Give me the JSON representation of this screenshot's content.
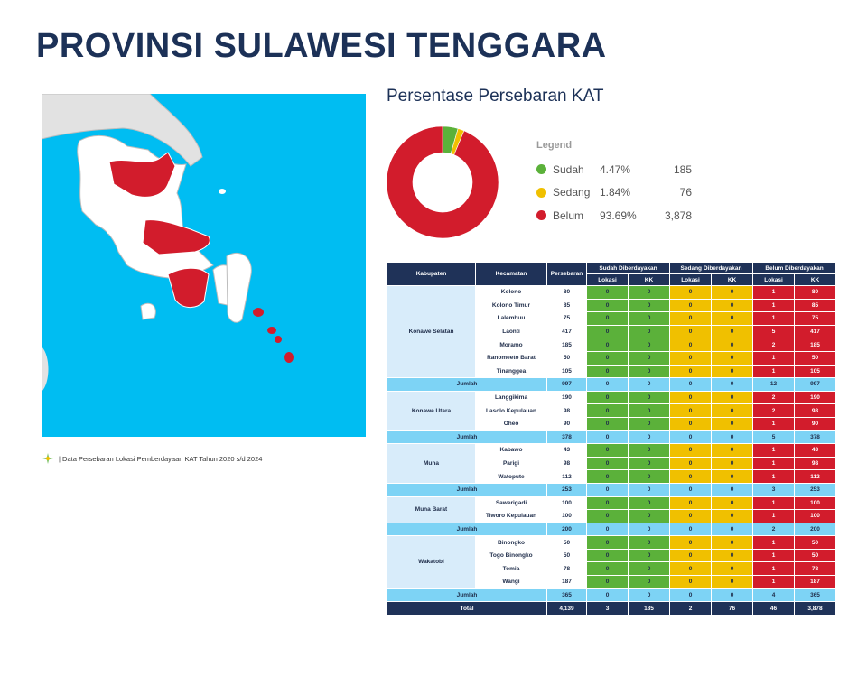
{
  "title": "PROVINSI SULAWESI TENGGARA",
  "chart_title": "Persentase Persebaran KAT",
  "source_note": "| Data Persebaran Lokasi Pemberdayaan KAT Tahun 2020 s/d 2024",
  "colors": {
    "sudah": "#5bb13a",
    "sedang": "#f0c000",
    "belum": "#d21c2c",
    "sea": "#00bdf2",
    "header": "#1f3258"
  },
  "map": {
    "highlighted_regions": [
      "Konawe Selatan",
      "Konawe Utara",
      "Muna",
      "Muna Barat",
      "Wakatobi"
    ]
  },
  "chart_data": {
    "type": "pie",
    "donut": true,
    "title": "Persentase Persebaran KAT",
    "legend_title": "Legend",
    "slices": [
      {
        "name": "Sudah",
        "percent": "4.47%",
        "value": 185,
        "label_value": "185",
        "color": "#5bb13a"
      },
      {
        "name": "Sedang",
        "percent": "1.84%",
        "value": 76,
        "label_value": "76",
        "color": "#f0c000"
      },
      {
        "name": "Belum",
        "percent": "93.69%",
        "value": 3878,
        "label_value": "3,878",
        "color": "#d21c2c"
      }
    ]
  },
  "table": {
    "headers": {
      "kabupaten": "Kabupaten",
      "kecamatan": "Kecamatan",
      "persebaran": "Persebaran",
      "sudah": "Sudah Diberdayakan",
      "sedang": "Sedang Diberdayakan",
      "belum": "Belum Diberdayakan",
      "lokasi": "Lokasi",
      "kk": "KK"
    },
    "groups": [
      {
        "kabupaten": "Konawe Selatan",
        "rows": [
          {
            "kecamatan": "Kolono",
            "persebaran": "80",
            "sudah_lokasi": "0",
            "sudah_kk": "0",
            "sedang_lokasi": "0",
            "sedang_kk": "0",
            "belum_lokasi": "1",
            "belum_kk": "80"
          },
          {
            "kecamatan": "Kolono Timur",
            "persebaran": "85",
            "sudah_lokasi": "0",
            "sudah_kk": "0",
            "sedang_lokasi": "0",
            "sedang_kk": "0",
            "belum_lokasi": "1",
            "belum_kk": "85"
          },
          {
            "kecamatan": "Lalembuu",
            "persebaran": "75",
            "sudah_lokasi": "0",
            "sudah_kk": "0",
            "sedang_lokasi": "0",
            "sedang_kk": "0",
            "belum_lokasi": "1",
            "belum_kk": "75"
          },
          {
            "kecamatan": "Laonti",
            "persebaran": "417",
            "sudah_lokasi": "0",
            "sudah_kk": "0",
            "sedang_lokasi": "0",
            "sedang_kk": "0",
            "belum_lokasi": "5",
            "belum_kk": "417"
          },
          {
            "kecamatan": "Moramo",
            "persebaran": "185",
            "sudah_lokasi": "0",
            "sudah_kk": "0",
            "sedang_lokasi": "0",
            "sedang_kk": "0",
            "belum_lokasi": "2",
            "belum_kk": "185"
          },
          {
            "kecamatan": "Ranomeeto Barat",
            "persebaran": "50",
            "sudah_lokasi": "0",
            "sudah_kk": "0",
            "sedang_lokasi": "0",
            "sedang_kk": "0",
            "belum_lokasi": "1",
            "belum_kk": "50"
          },
          {
            "kecamatan": "Tinanggea",
            "persebaran": "105",
            "sudah_lokasi": "0",
            "sudah_kk": "0",
            "sedang_lokasi": "0",
            "sedang_kk": "0",
            "belum_lokasi": "1",
            "belum_kk": "105"
          }
        ],
        "jumlah": {
          "label": "Jumlah",
          "persebaran": "997",
          "sudah_lokasi": "0",
          "sudah_kk": "0",
          "sedang_lokasi": "0",
          "sedang_kk": "0",
          "belum_lokasi": "12",
          "belum_kk": "997"
        }
      },
      {
        "kabupaten": "Konawe Utara",
        "rows": [
          {
            "kecamatan": "Langgikima",
            "persebaran": "190",
            "sudah_lokasi": "0",
            "sudah_kk": "0",
            "sedang_lokasi": "0",
            "sedang_kk": "0",
            "belum_lokasi": "2",
            "belum_kk": "190"
          },
          {
            "kecamatan": "Lasolo Kepulauan",
            "persebaran": "98",
            "sudah_lokasi": "0",
            "sudah_kk": "0",
            "sedang_lokasi": "0",
            "sedang_kk": "0",
            "belum_lokasi": "2",
            "belum_kk": "98"
          },
          {
            "kecamatan": "Oheo",
            "persebaran": "90",
            "sudah_lokasi": "0",
            "sudah_kk": "0",
            "sedang_lokasi": "0",
            "sedang_kk": "0",
            "belum_lokasi": "1",
            "belum_kk": "90"
          }
        ],
        "jumlah": {
          "label": "Jumlah",
          "persebaran": "378",
          "sudah_lokasi": "0",
          "sudah_kk": "0",
          "sedang_lokasi": "0",
          "sedang_kk": "0",
          "belum_lokasi": "5",
          "belum_kk": "378"
        }
      },
      {
        "kabupaten": "Muna",
        "rows": [
          {
            "kecamatan": "Kabawo",
            "persebaran": "43",
            "sudah_lokasi": "0",
            "sudah_kk": "0",
            "sedang_lokasi": "0",
            "sedang_kk": "0",
            "belum_lokasi": "1",
            "belum_kk": "43"
          },
          {
            "kecamatan": "Parigi",
            "persebaran": "98",
            "sudah_lokasi": "0",
            "sudah_kk": "0",
            "sedang_lokasi": "0",
            "sedang_kk": "0",
            "belum_lokasi": "1",
            "belum_kk": "98"
          },
          {
            "kecamatan": "Watopute",
            "persebaran": "112",
            "sudah_lokasi": "0",
            "sudah_kk": "0",
            "sedang_lokasi": "0",
            "sedang_kk": "0",
            "belum_lokasi": "1",
            "belum_kk": "112"
          }
        ],
        "jumlah": {
          "label": "Jumlah",
          "persebaran": "253",
          "sudah_lokasi": "0",
          "sudah_kk": "0",
          "sedang_lokasi": "0",
          "sedang_kk": "0",
          "belum_lokasi": "3",
          "belum_kk": "253"
        }
      },
      {
        "kabupaten": "Muna Barat",
        "rows": [
          {
            "kecamatan": "Sawerigadi",
            "persebaran": "100",
            "sudah_lokasi": "0",
            "sudah_kk": "0",
            "sedang_lokasi": "0",
            "sedang_kk": "0",
            "belum_lokasi": "1",
            "belum_kk": "100"
          },
          {
            "kecamatan": "Tiworo Kepulauan",
            "persebaran": "100",
            "sudah_lokasi": "0",
            "sudah_kk": "0",
            "sedang_lokasi": "0",
            "sedang_kk": "0",
            "belum_lokasi": "1",
            "belum_kk": "100"
          }
        ],
        "jumlah": {
          "label": "Jumlah",
          "persebaran": "200",
          "sudah_lokasi": "0",
          "sudah_kk": "0",
          "sedang_lokasi": "0",
          "sedang_kk": "0",
          "belum_lokasi": "2",
          "belum_kk": "200"
        }
      },
      {
        "kabupaten": "Wakatobi",
        "rows": [
          {
            "kecamatan": "Binongko",
            "persebaran": "50",
            "sudah_lokasi": "0",
            "sudah_kk": "0",
            "sedang_lokasi": "0",
            "sedang_kk": "0",
            "belum_lokasi": "1",
            "belum_kk": "50"
          },
          {
            "kecamatan": "Togo Binongko",
            "persebaran": "50",
            "sudah_lokasi": "0",
            "sudah_kk": "0",
            "sedang_lokasi": "0",
            "sedang_kk": "0",
            "belum_lokasi": "1",
            "belum_kk": "50"
          },
          {
            "kecamatan": "Tomia",
            "persebaran": "78",
            "sudah_lokasi": "0",
            "sudah_kk": "0",
            "sedang_lokasi": "0",
            "sedang_kk": "0",
            "belum_lokasi": "1",
            "belum_kk": "78"
          },
          {
            "kecamatan": "Wangi",
            "persebaran": "187",
            "sudah_lokasi": "0",
            "sudah_kk": "0",
            "sedang_lokasi": "0",
            "sedang_kk": "0",
            "belum_lokasi": "1",
            "belum_kk": "187"
          }
        ],
        "jumlah": {
          "label": "Jumlah",
          "persebaran": "365",
          "sudah_lokasi": "0",
          "sudah_kk": "0",
          "sedang_lokasi": "0",
          "sedang_kk": "0",
          "belum_lokasi": "4",
          "belum_kk": "365"
        }
      }
    ],
    "total": {
      "label": "Total",
      "persebaran": "4,139",
      "sudah_lokasi": "3",
      "sudah_kk": "185",
      "sedang_lokasi": "2",
      "sedang_kk": "76",
      "belum_lokasi": "46",
      "belum_kk": "3,878"
    }
  }
}
